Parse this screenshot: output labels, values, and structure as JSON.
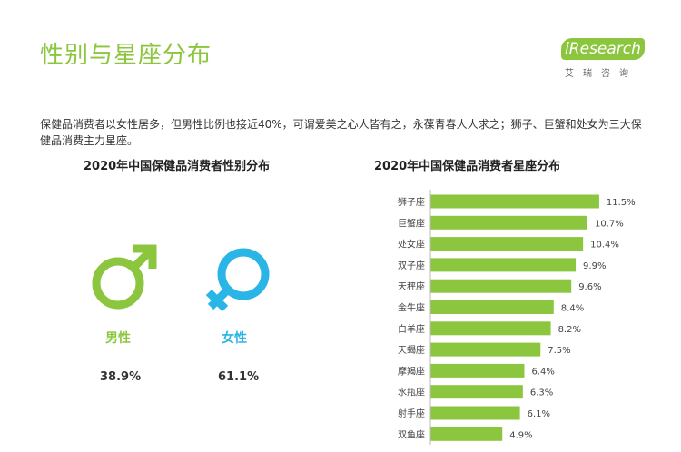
{
  "header": {
    "title": "性别与星座分布"
  },
  "logo": {
    "wordmark": "iResearch",
    "subtitle": "艾瑞咨询"
  },
  "intro_text": "保健品消费者以女性居多，但男性比例也接近40%，可谓爱美之心人皆有之，永葆青春人人求之；狮子、巨蟹和处女为三大保健品消费主力星座。",
  "colors": {
    "accent_green": "#8cc63f",
    "accent_blue": "#29b6e6"
  },
  "gender_icons": {
    "male": "male-symbol-icon",
    "female": "female-symbol-icon"
  },
  "chart_data": [
    {
      "type": "table",
      "title": "2020年中国保健品消费者性别分布",
      "categories": [
        "男性",
        "女性"
      ],
      "values_text": [
        "38.9%",
        "61.1%"
      ],
      "values": [
        38.9,
        61.1
      ],
      "unit": "%"
    },
    {
      "type": "bar",
      "orientation": "horizontal",
      "title": "2020年中国保健品消费者星座分布",
      "categories": [
        "狮子座",
        "巨蟹座",
        "处女座",
        "双子座",
        "天秤座",
        "金牛座",
        "白羊座",
        "天蝎座",
        "摩羯座",
        "水瓶座",
        "射手座",
        "双鱼座"
      ],
      "values": [
        11.5,
        10.7,
        10.4,
        9.9,
        9.6,
        8.4,
        8.2,
        7.5,
        6.4,
        6.3,
        6.1,
        4.9
      ],
      "value_labels": [
        "11.5%",
        "10.7%",
        "10.4%",
        "9.9%",
        "9.6%",
        "8.4%",
        "8.2%",
        "7.5%",
        "6.4%",
        "6.3%",
        "6.1%",
        "4.9%"
      ],
      "xlim": [
        0,
        12
      ],
      "grid": false,
      "legend": "none"
    }
  ]
}
